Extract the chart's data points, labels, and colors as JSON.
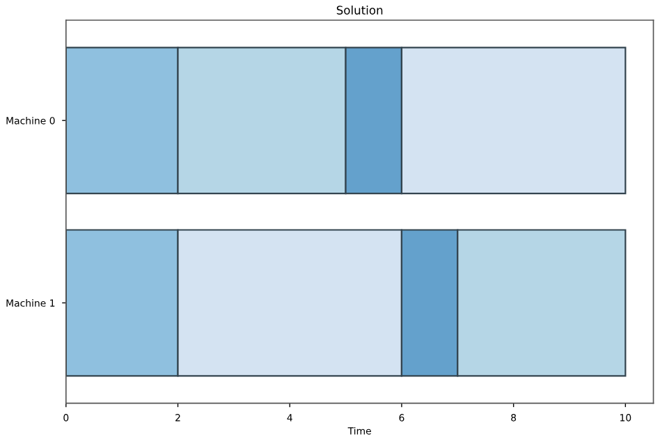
{
  "chart_data": {
    "type": "bar",
    "orientation": "horizontal",
    "stacked": true,
    "title": "Solution",
    "xlabel": "Time",
    "categories": [
      "Machine 0",
      "Machine 1"
    ],
    "series": [
      {
        "colors": [
          "#8fc0df",
          "#8fc0df"
        ],
        "values": [
          2,
          2
        ]
      },
      {
        "colors": [
          "#b5d6e6",
          "#d4e3f2"
        ],
        "values": [
          3,
          4
        ]
      },
      {
        "colors": [
          "#64a1cc",
          "#64a1cc"
        ],
        "values": [
          1,
          1
        ]
      },
      {
        "colors": [
          "#d4e3f2",
          "#b5d6e6"
        ],
        "values": [
          4,
          3
        ]
      }
    ],
    "xlim": [
      0,
      10.5
    ],
    "xticks": [
      0,
      2,
      4,
      6,
      8,
      10
    ],
    "grid": false,
    "legend": false
  }
}
